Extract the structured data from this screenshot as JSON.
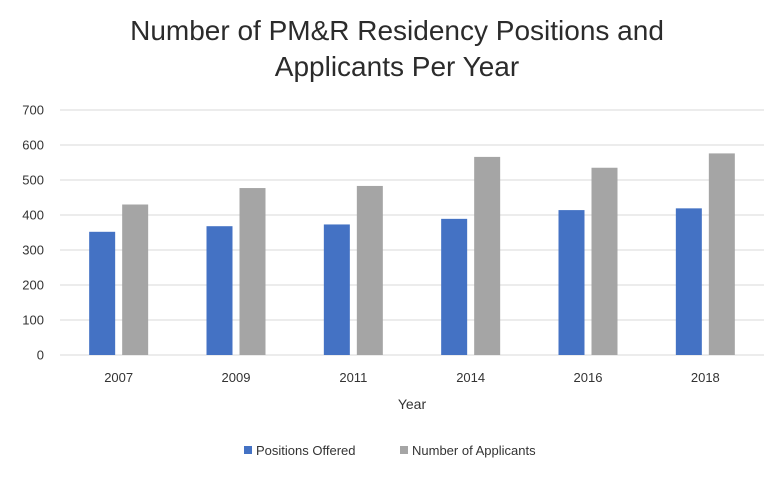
{
  "chart_data": {
    "type": "bar",
    "title_lines": [
      "Number of PM&R Residency Positions and",
      "Applicants Per Year"
    ],
    "xlabel": "Year",
    "ylabel": "",
    "categories": [
      "2007",
      "2009",
      "2011",
      "2014",
      "2016",
      "2018"
    ],
    "series": [
      {
        "name": "Positions Offered",
        "color": "#4472c4",
        "values": [
          352,
          368,
          373,
          389,
          414,
          419
        ]
      },
      {
        "name": "Number of Applicants",
        "color": "#a5a5a5",
        "values": [
          430,
          477,
          483,
          566,
          535,
          576
        ]
      }
    ],
    "ylim": [
      0,
      700
    ],
    "yticks": [
      "0",
      "100",
      "200",
      "300",
      "400",
      "500",
      "600",
      "700"
    ],
    "grid": true,
    "legend_position": "bottom"
  }
}
